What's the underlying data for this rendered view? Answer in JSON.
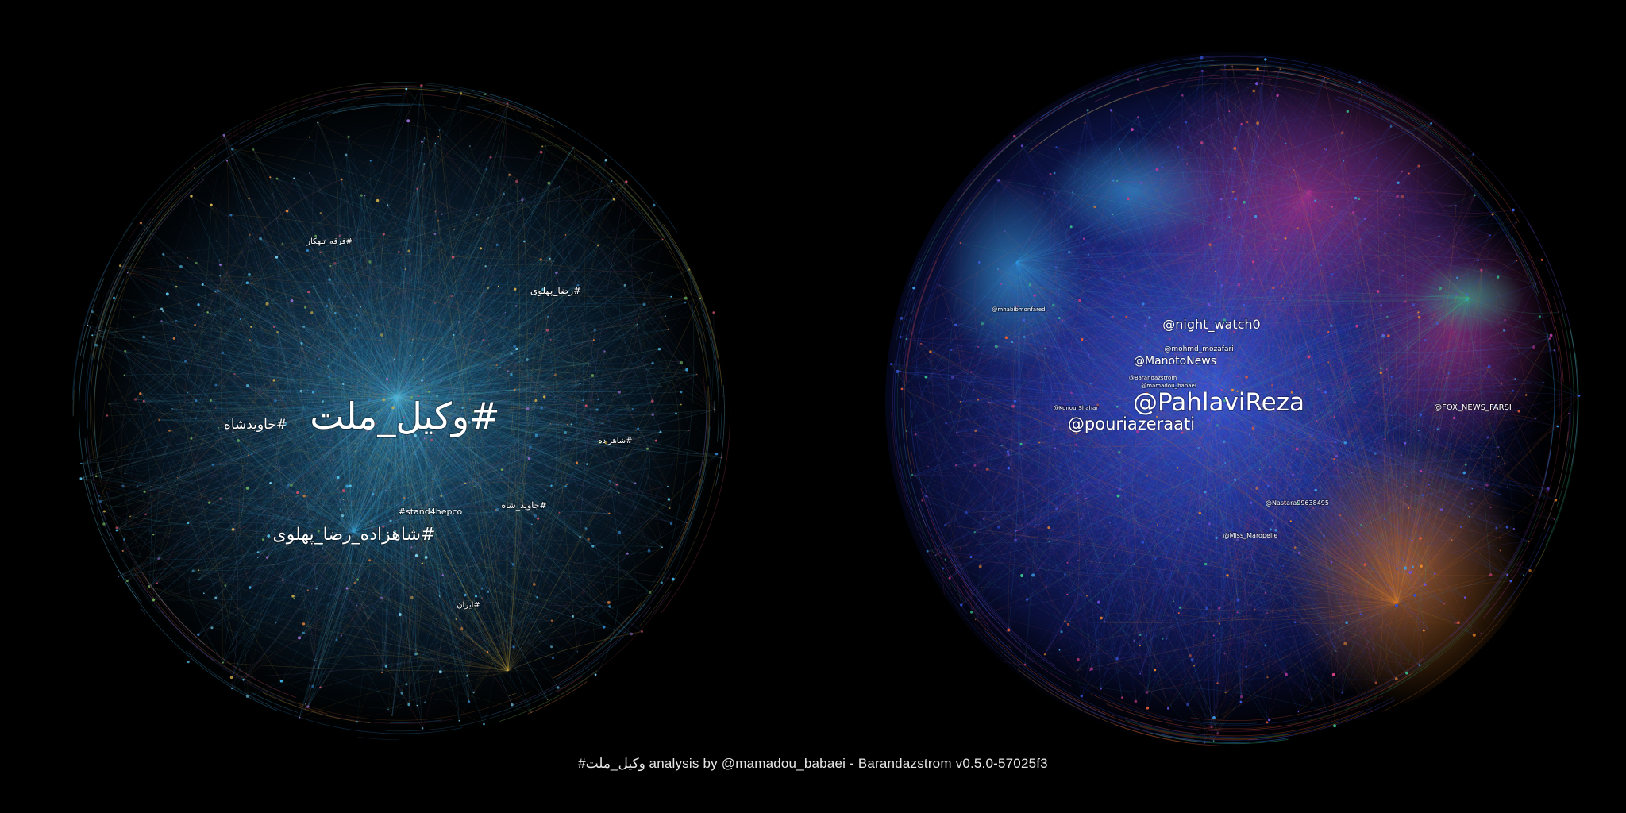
{
  "caption": "#وکیل_ملت analysis by @mamadou_babaei - Barandazstrom v0.5.0-57025f3",
  "hashtag_graph": {
    "hub": "#وکیل_ملت",
    "labels": [
      {
        "text": "#وکیل_ملت",
        "tier": "xl"
      },
      {
        "text": "#شاهزاده_رضا_پهلوی",
        "tier": "m"
      },
      {
        "text": "#جاویدشاه",
        "tier": "s"
      },
      {
        "text": "#رضا_پهلوی",
        "tier": "xs"
      },
      {
        "text": "#stand4hepco",
        "tier": "xs"
      },
      {
        "text": "#جاوید_شاه",
        "tier": "xs"
      },
      {
        "text": "#شاهزاده",
        "tier": "xs"
      },
      {
        "text": "#ایران",
        "tier": "xs"
      },
      {
        "text": "#فرقه_تبهکار",
        "tier": "xs"
      }
    ],
    "palette": [
      "#3fa9e0",
      "#2e7fc4",
      "#56c2e8",
      "#7ad0ef",
      "#9c6fd6",
      "#d8b34a",
      "#e0803a",
      "#c94f6a",
      "#6fae5a"
    ]
  },
  "user_graph": {
    "hub": "@PahlaviReza",
    "labels": [
      {
        "text": "@PahlaviReza",
        "tier": "l"
      },
      {
        "text": "@pouriazeraati",
        "tier": "m"
      },
      {
        "text": "@night_watch0",
        "tier": "s"
      },
      {
        "text": "@ManotoNews",
        "tier": "s"
      },
      {
        "text": "@FOX_NEWS_FARSI",
        "tier": "xs"
      },
      {
        "text": "@Nastara99638495",
        "tier": "xs"
      },
      {
        "text": "@Miss_Maropelle",
        "tier": "xs"
      },
      {
        "text": "@mohmd_mozafari",
        "tier": "xs"
      },
      {
        "text": "@mamadou_babaei",
        "tier": "xs"
      },
      {
        "text": "@KonourShahar",
        "tier": "xs"
      },
      {
        "text": "@Barandazstrom",
        "tier": "xs"
      },
      {
        "text": "@mhabibmonfared",
        "tier": "xs"
      }
    ],
    "palette": [
      "#2c4fd6",
      "#3b5ff0",
      "#3aa0ea",
      "#6f4fe0",
      "#b0399d",
      "#d03f82",
      "#f08a2a",
      "#39c28a",
      "#e05a3a"
    ]
  }
}
